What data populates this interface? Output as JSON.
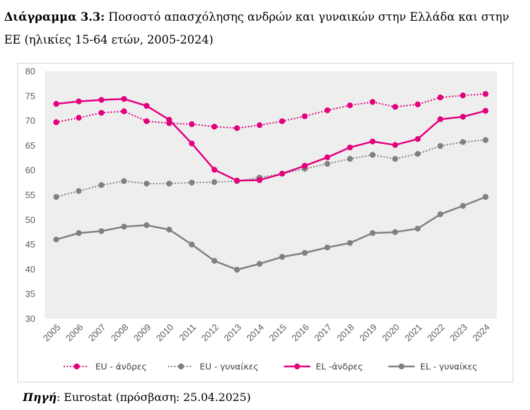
{
  "title": {
    "label": "Διάγραμμα 3.3:",
    "text": "Ποσοστό απασχόλησης ανδρών και γυναικών στην Ελλάδα και στην ΕΕ (ηλικίες 15-64 ετών, 2005-2024)"
  },
  "source": {
    "label": "Πηγή",
    "text": ": Eurostat (πρόσβαση: 25.04.2025)"
  },
  "chart_data": {
    "type": "line",
    "title": "",
    "xlabel": "",
    "ylabel": "",
    "ylim": [
      30,
      80
    ],
    "yticks": [
      30,
      35,
      40,
      45,
      50,
      55,
      60,
      65,
      70,
      75,
      80
    ],
    "grid": false,
    "legend": "bottom",
    "categories": [
      "2005",
      "2006",
      "2007",
      "2008",
      "2009",
      "2010",
      "2011",
      "2012",
      "2013",
      "2014",
      "2015",
      "2016",
      "2017",
      "2018",
      "2019",
      "2020",
      "2021",
      "2022",
      "2023",
      "2024"
    ],
    "series": [
      {
        "name": "EU - άνδρες",
        "color": "#e3007e",
        "style": "dotted",
        "values": [
          69.7,
          70.6,
          71.6,
          71.9,
          69.9,
          69.5,
          69.3,
          68.8,
          68.5,
          69.1,
          69.9,
          70.9,
          72.1,
          73.1,
          73.8,
          72.8,
          73.3,
          74.7,
          75.1,
          75.4
        ]
      },
      {
        "name": "EU - γυναίκες",
        "color": "#808080",
        "style": "dotted",
        "values": [
          54.6,
          55.8,
          57.0,
          57.8,
          57.3,
          57.3,
          57.5,
          57.6,
          57.8,
          58.5,
          59.3,
          60.3,
          61.3,
          62.3,
          63.1,
          62.3,
          63.3,
          64.9,
          65.7,
          66.1
        ]
      },
      {
        "name": "EL -άνδρες",
        "color": "#e3007e",
        "style": "solid",
        "values": [
          73.4,
          73.9,
          74.2,
          74.4,
          73.0,
          70.2,
          65.4,
          60.1,
          57.9,
          58.0,
          59.3,
          60.9,
          62.6,
          64.6,
          65.8,
          65.1,
          66.3,
          70.3,
          70.8,
          72.0
        ]
      },
      {
        "name": "EL - γυναίκες",
        "color": "#808080",
        "style": "solid",
        "values": [
          46.0,
          47.3,
          47.7,
          48.6,
          48.9,
          48.0,
          45.0,
          41.7,
          39.9,
          41.1,
          42.5,
          43.3,
          44.4,
          45.3,
          47.3,
          47.5,
          48.2,
          51.1,
          52.8,
          54.6
        ]
      }
    ]
  }
}
